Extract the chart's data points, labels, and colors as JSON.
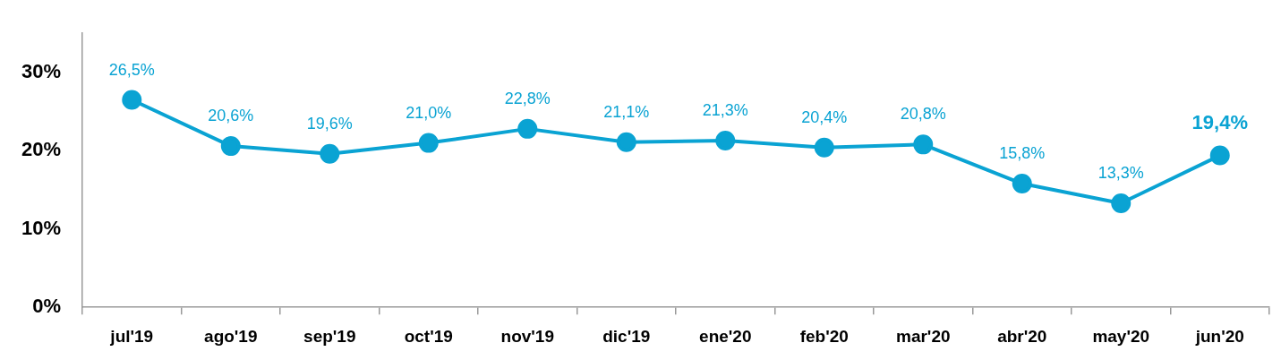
{
  "chart_data": {
    "type": "line",
    "categories": [
      "jul'19",
      "ago'19",
      "sep'19",
      "oct'19",
      "nov'19",
      "dic'19",
      "ene'20",
      "feb'20",
      "mar'20",
      "abr'20",
      "may'20",
      "jun'20"
    ],
    "series": [
      {
        "color": "#0aa3d3",
        "values": [
          26.5,
          20.6,
          19.6,
          21.0,
          22.8,
          21.1,
          21.3,
          20.4,
          20.8,
          15.8,
          13.3,
          19.4
        ],
        "value_labels": [
          "26,5%",
          "20,6%",
          "19,6%",
          "21,0%",
          "22,8%",
          "21,1%",
          "21,3%",
          "20,4%",
          "20,8%",
          "15,8%",
          "13,3%",
          "19,4%"
        ]
      }
    ],
    "ylim": [
      0,
      35
    ],
    "yticks": [
      {
        "value": 0,
        "label": "0%"
      },
      {
        "value": 10,
        "label": "10%"
      },
      {
        "value": 20,
        "label": "20%"
      },
      {
        "value": 30,
        "label": "30%"
      }
    ],
    "grid": false,
    "legend": false,
    "marker": "circle",
    "line_style": "solid"
  }
}
